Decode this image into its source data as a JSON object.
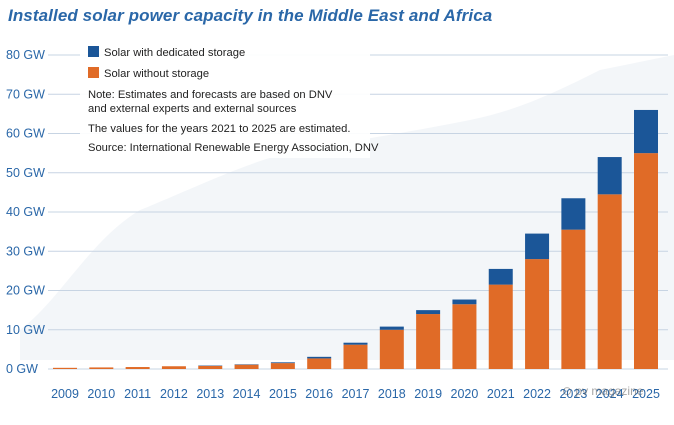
{
  "chart_data": {
    "type": "bar",
    "title": "Installed solar power capacity in the Middle East and Africa",
    "xlabel": "",
    "ylabel": "",
    "categories": [
      "2009",
      "2010",
      "2011",
      "2012",
      "2013",
      "2014",
      "2015",
      "2016",
      "2017",
      "2018",
      "2019",
      "2020",
      "2021",
      "2022",
      "2023",
      "2024",
      "2025"
    ],
    "series": [
      {
        "name": "Solar without storage",
        "color": "#e06b27",
        "values": [
          0.3,
          0.4,
          0.5,
          0.7,
          0.8,
          1.1,
          1.5,
          2.7,
          6.2,
          10.0,
          14.0,
          16.5,
          21.5,
          28.0,
          35.5,
          44.5,
          55.0
        ]
      },
      {
        "name": "Solar with dedicated storage",
        "color": "#1b5698",
        "values": [
          0.0,
          0.0,
          0.0,
          0.0,
          0.1,
          0.1,
          0.2,
          0.4,
          0.5,
          0.8,
          1.0,
          1.2,
          4.0,
          6.5,
          8.0,
          9.5,
          11.0
        ]
      }
    ],
    "stacked": true,
    "ylim": [
      0,
      80
    ],
    "yticks": [
      "0 GW",
      "10 GW",
      "20 GW",
      "30 GW",
      "40 GW",
      "50 GW",
      "60 GW",
      "70 GW",
      "80 GW"
    ],
    "grid": true,
    "legend_position": "top-left",
    "notes": [
      "Note: Estimates and forecasts are based on DNV",
      "and external experts and external sources",
      "The values for the years 2021 to 2025 are estimated.",
      "Source:  International Renewable Energy Association, DNV"
    ],
    "legend_labels": {
      "with_storage": "Solar with dedicated storage",
      "without_storage": "Solar without storage"
    }
  },
  "colors": {
    "title": "#2a67a8",
    "axis_text": "#2a67a8",
    "grid": "#c7d4e3",
    "storage": "#1b5698",
    "no_storage": "#e06b27"
  },
  "watermark": "⊙ pv magazine"
}
